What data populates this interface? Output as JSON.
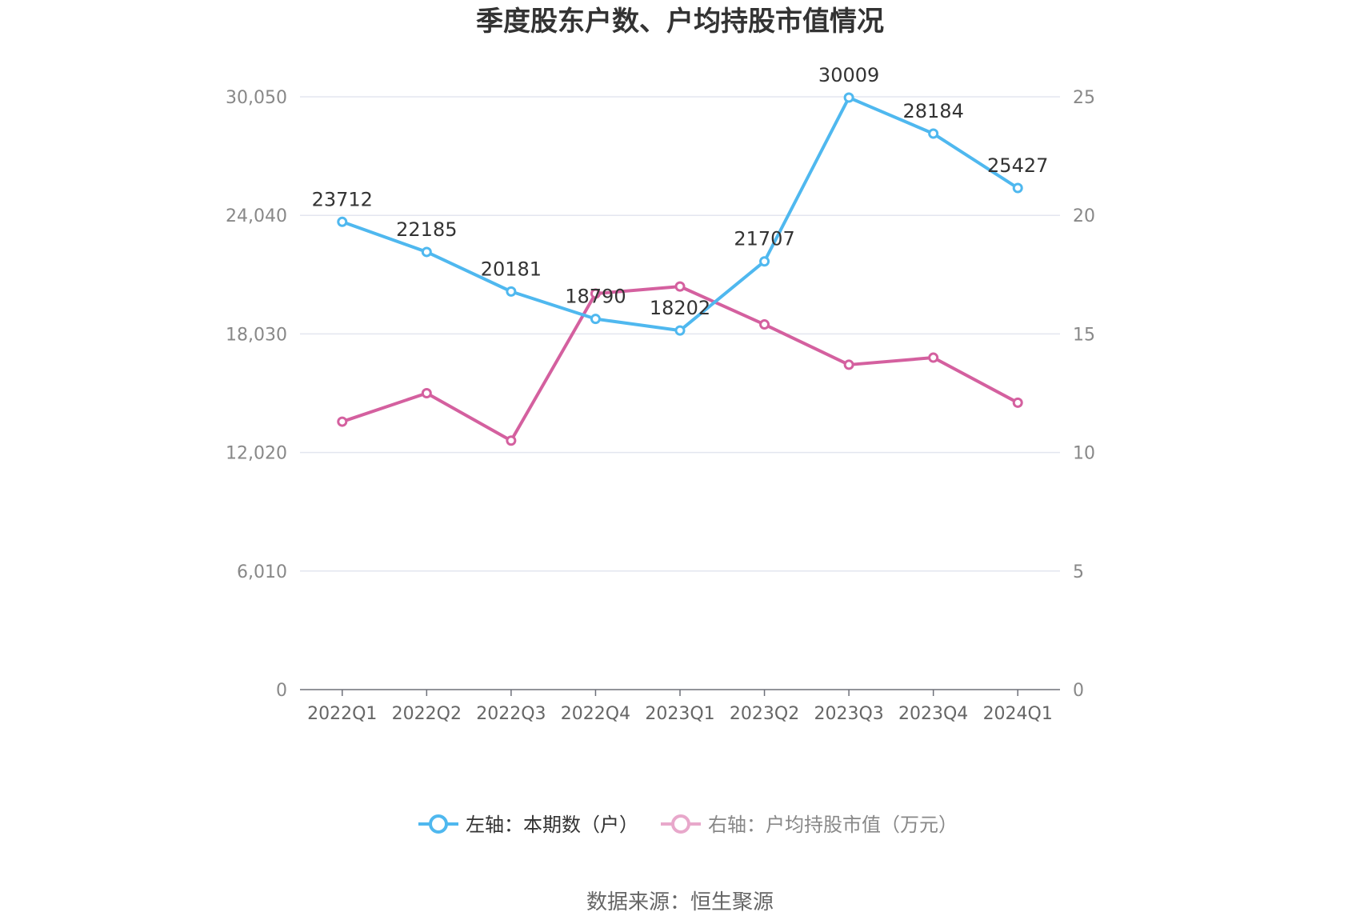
{
  "chart_data": {
    "type": "line",
    "title": "季度股东户数、户均持股市值情况",
    "categories": [
      "2022Q1",
      "2022Q2",
      "2022Q3",
      "2022Q4",
      "2023Q1",
      "2023Q2",
      "2023Q3",
      "2023Q4",
      "2024Q1"
    ],
    "left_axis": {
      "ticks": [
        "0",
        "6,010",
        "12,020",
        "18,030",
        "24,040",
        "30,050"
      ],
      "ylim": [
        0,
        30050
      ]
    },
    "right_axis": {
      "ticks": [
        "0",
        "5",
        "10",
        "15",
        "20",
        "25"
      ],
      "ylim": [
        0,
        25
      ]
    },
    "series": [
      {
        "name": "左轴：本期数（户）",
        "axis": "left",
        "color": "#4fb8ef",
        "values": [
          23712,
          22185,
          20181,
          18790,
          18202,
          21707,
          30009,
          28184,
          25427
        ],
        "labels": [
          "23712",
          "22185",
          "20181",
          "18790",
          "18202",
          "21707",
          "30009",
          "28184",
          "25427"
        ]
      },
      {
        "name": "右轴：户均持股市值（万元）",
        "axis": "right",
        "color": "#d4609f",
        "values": [
          11.3,
          12.5,
          10.5,
          16.7,
          17.0,
          15.4,
          13.7,
          14.0,
          12.1
        ]
      }
    ],
    "grid": true,
    "legend_position": "bottom"
  },
  "legend": {
    "left_label": "左轴：本期数（户）",
    "right_label": "右轴：户均持股市值（万元）"
  },
  "source": "数据来源：恒生聚源"
}
